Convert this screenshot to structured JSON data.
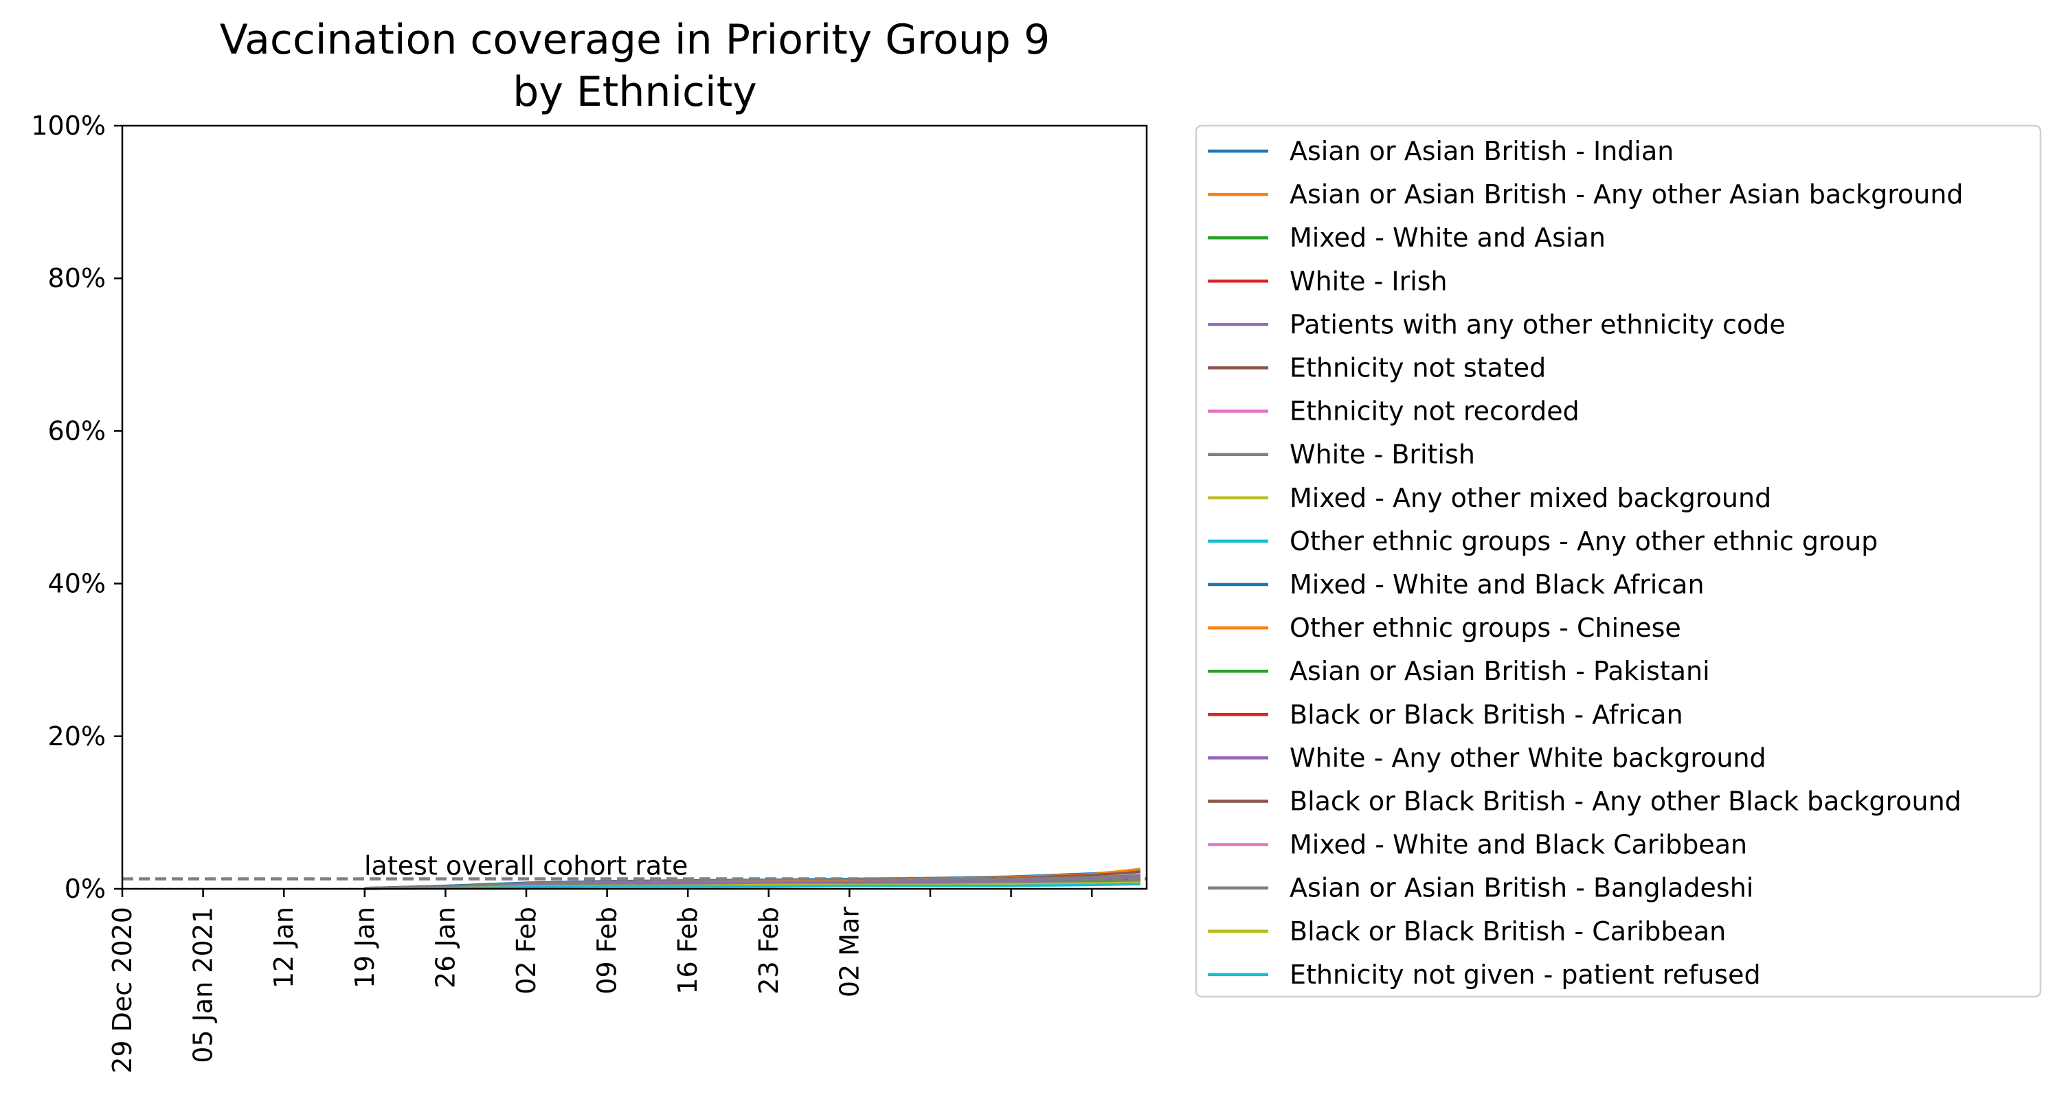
{
  "chart_data": {
    "type": "line",
    "title": "Vaccination coverage in Priority Group 9\nby Ethnicity",
    "xlabel": "",
    "ylabel": "",
    "ylim": [
      0,
      100
    ],
    "y_ticks": [
      0,
      20,
      40,
      60,
      80,
      100
    ],
    "y_tick_labels": [
      "0%",
      "20%",
      "40%",
      "60%",
      "80%",
      "100%"
    ],
    "x_tick_labels": [
      "29 Dec 2020",
      "05 Jan 2021",
      "12 Jan",
      "19 Jan",
      "26 Jan",
      "02 Feb",
      "09 Feb",
      "16 Feb",
      "23 Feb",
      "02 Mar",
      "",
      "",
      ""
    ],
    "x_start": "29 Dec 2020",
    "grid": false,
    "legend_position": "outside-right",
    "reference_line": {
      "label": "latest overall cohort rate",
      "value": 1.3,
      "style": "dashed",
      "color": "#808080"
    },
    "x": [
      "19 Jan",
      "26 Jan",
      "02 Feb",
      "09 Feb",
      "16 Feb",
      "23 Feb",
      "02 Mar",
      "09 Mar",
      "16 Mar",
      "23 Mar",
      "27 Mar"
    ],
    "series": [
      {
        "name": "Asian or Asian British - Indian",
        "color": "#1f77b4",
        "values": [
          0.1,
          0.4,
          0.8,
          1.0,
          1.1,
          1.2,
          1.3,
          1.4,
          1.6,
          2.0,
          2.4
        ]
      },
      {
        "name": "Asian or Asian British - Any other Asian background",
        "color": "#ff7f0e",
        "values": [
          0.1,
          0.3,
          0.7,
          0.9,
          1.0,
          1.1,
          1.2,
          1.3,
          1.5,
          1.9,
          2.6
        ]
      },
      {
        "name": "Mixed - White and Asian",
        "color": "#2ca02c",
        "values": [
          0.0,
          0.2,
          0.5,
          0.7,
          0.8,
          0.9,
          1.0,
          1.0,
          1.1,
          1.3,
          1.6
        ]
      },
      {
        "name": "White - Irish",
        "color": "#d62728",
        "values": [
          0.1,
          0.3,
          0.7,
          0.9,
          1.0,
          1.1,
          1.1,
          1.2,
          1.3,
          1.5,
          1.8
        ]
      },
      {
        "name": "Patients with any other ethnicity code",
        "color": "#9467bd",
        "values": [
          0.1,
          0.3,
          0.6,
          0.8,
          0.9,
          1.0,
          1.1,
          1.1,
          1.2,
          1.4,
          1.7
        ]
      },
      {
        "name": "Ethnicity not stated",
        "color": "#8c564b",
        "values": [
          0.1,
          0.3,
          0.6,
          0.8,
          0.9,
          1.0,
          1.1,
          1.2,
          1.4,
          1.8,
          2.2
        ]
      },
      {
        "name": "Ethnicity not recorded",
        "color": "#e377c2",
        "values": [
          0.0,
          0.2,
          0.4,
          0.6,
          0.7,
          0.7,
          0.8,
          0.8,
          0.9,
          1.0,
          1.2
        ]
      },
      {
        "name": "White - British",
        "color": "#7f7f7f",
        "values": [
          0.1,
          0.3,
          0.7,
          0.9,
          1.0,
          1.1,
          1.2,
          1.2,
          1.3,
          1.5,
          1.8
        ]
      },
      {
        "name": "Mixed - Any other mixed background",
        "color": "#bcbd22",
        "values": [
          0.0,
          0.2,
          0.4,
          0.6,
          0.7,
          0.8,
          0.8,
          0.9,
          1.0,
          1.1,
          1.3
        ]
      },
      {
        "name": "Other ethnic groups - Any other ethnic group",
        "color": "#17becf",
        "values": [
          0.0,
          0.2,
          0.5,
          0.6,
          0.7,
          0.8,
          0.9,
          0.9,
          1.0,
          1.2,
          1.4
        ]
      },
      {
        "name": "Mixed - White and Black African",
        "color": "#1f77b4",
        "values": [
          0.0,
          0.2,
          0.4,
          0.5,
          0.6,
          0.6,
          0.7,
          0.7,
          0.8,
          0.9,
          1.0
        ]
      },
      {
        "name": "Other ethnic groups - Chinese",
        "color": "#ff7f0e",
        "values": [
          0.0,
          0.2,
          0.5,
          0.7,
          0.8,
          0.9,
          1.0,
          1.0,
          1.1,
          1.3,
          1.5
        ]
      },
      {
        "name": "Asian or Asian British - Pakistani",
        "color": "#2ca02c",
        "values": [
          0.0,
          0.2,
          0.4,
          0.6,
          0.6,
          0.7,
          0.8,
          0.8,
          0.9,
          1.0,
          1.2
        ]
      },
      {
        "name": "Black or Black British - African",
        "color": "#d62728",
        "values": [
          0.0,
          0.2,
          0.3,
          0.4,
          0.5,
          0.5,
          0.6,
          0.6,
          0.7,
          0.8,
          0.9
        ]
      },
      {
        "name": "White - Any other White background",
        "color": "#9467bd",
        "values": [
          0.0,
          0.2,
          0.5,
          0.7,
          0.8,
          0.8,
          0.9,
          1.0,
          1.1,
          1.3,
          1.5
        ]
      },
      {
        "name": "Black or Black British - Any other Black background",
        "color": "#8c564b",
        "values": [
          0.0,
          0.1,
          0.3,
          0.4,
          0.4,
          0.5,
          0.5,
          0.5,
          0.6,
          0.7,
          0.8
        ]
      },
      {
        "name": "Mixed - White and Black Caribbean",
        "color": "#e377c2",
        "values": [
          0.0,
          0.1,
          0.3,
          0.4,
          0.5,
          0.5,
          0.5,
          0.6,
          0.6,
          0.7,
          0.8
        ]
      },
      {
        "name": "Asian or Asian British - Bangladeshi",
        "color": "#7f7f7f",
        "values": [
          0.0,
          0.2,
          0.4,
          0.5,
          0.6,
          0.6,
          0.7,
          0.7,
          0.8,
          0.9,
          1.0
        ]
      },
      {
        "name": "Black or Black British - Caribbean",
        "color": "#bcbd22",
        "values": [
          0.0,
          0.1,
          0.3,
          0.4,
          0.4,
          0.5,
          0.5,
          0.5,
          0.6,
          0.7,
          0.8
        ]
      },
      {
        "name": "Ethnicity not given - patient refused",
        "color": "#17becf",
        "values": [
          0.0,
          0.1,
          0.2,
          0.3,
          0.3,
          0.3,
          0.4,
          0.4,
          0.4,
          0.5,
          0.6
        ]
      }
    ]
  }
}
